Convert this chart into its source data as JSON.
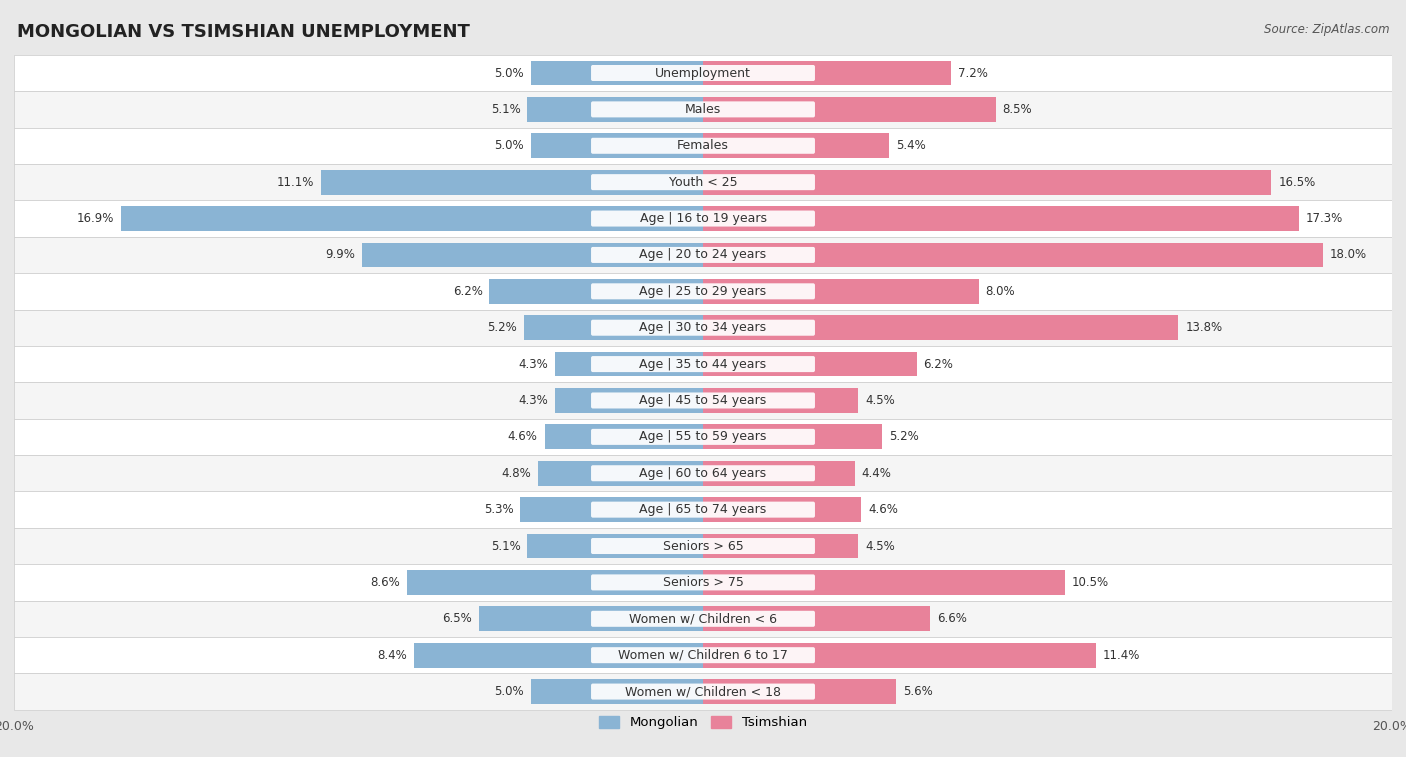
{
  "title": "MONGOLIAN VS TSIMSHIAN UNEMPLOYMENT",
  "source": "Source: ZipAtlas.com",
  "categories": [
    "Unemployment",
    "Males",
    "Females",
    "Youth < 25",
    "Age | 16 to 19 years",
    "Age | 20 to 24 years",
    "Age | 25 to 29 years",
    "Age | 30 to 34 years",
    "Age | 35 to 44 years",
    "Age | 45 to 54 years",
    "Age | 55 to 59 years",
    "Age | 60 to 64 years",
    "Age | 65 to 74 years",
    "Seniors > 65",
    "Seniors > 75",
    "Women w/ Children < 6",
    "Women w/ Children 6 to 17",
    "Women w/ Children < 18"
  ],
  "mongolian": [
    5.0,
    5.1,
    5.0,
    11.1,
    16.9,
    9.9,
    6.2,
    5.2,
    4.3,
    4.3,
    4.6,
    4.8,
    5.3,
    5.1,
    8.6,
    6.5,
    8.4,
    5.0
  ],
  "tsimshian": [
    7.2,
    8.5,
    5.4,
    16.5,
    17.3,
    18.0,
    8.0,
    13.8,
    6.2,
    4.5,
    5.2,
    4.4,
    4.6,
    4.5,
    10.5,
    6.6,
    11.4,
    5.6
  ],
  "mongolian_color": "#8ab4d4",
  "tsimshian_color": "#e8829a",
  "background_color": "#e8e8e8",
  "row_color_odd": "#f5f5f5",
  "row_color_even": "#ffffff",
  "label_bg_color": "#ffffff",
  "label_text_color": "#333333",
  "value_text_color": "#333333",
  "value_text_color_on_bar": "#ffffff",
  "xlim_max": 20.0,
  "value_fontsize": 8.5,
  "label_fontsize": 9,
  "title_fontsize": 13,
  "legend_mongolian": "Mongolian",
  "legend_tsimshian": "Tsimshian"
}
